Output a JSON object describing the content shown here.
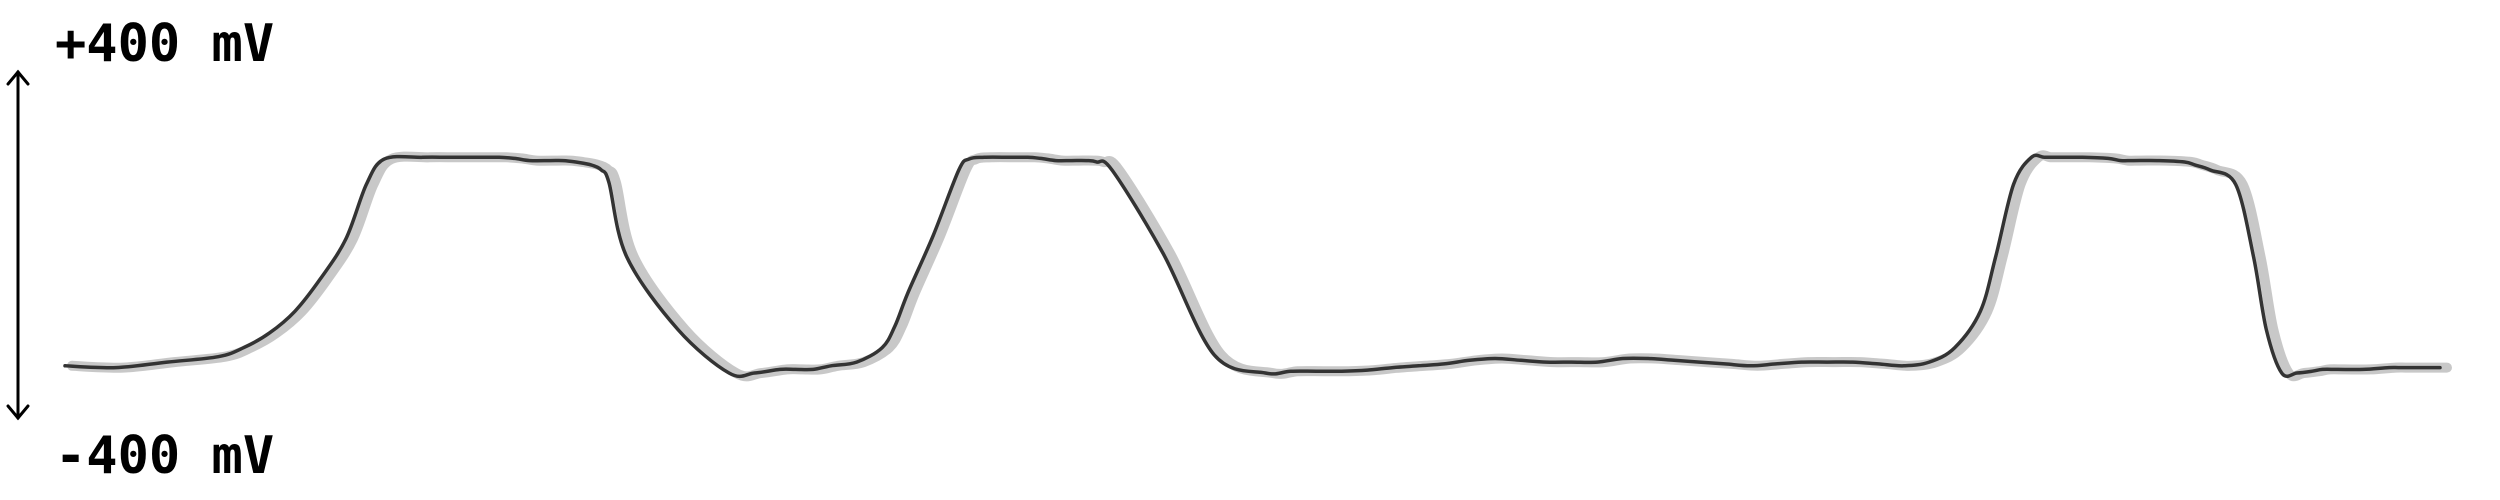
{
  "chart_data": {
    "type": "line",
    "title": "",
    "xlabel": "",
    "ylabel": "",
    "ylim": [
      -400,
      400
    ],
    "y_top_label": "+400 mV",
    "y_bottom_label": "-400 mV",
    "grid": false,
    "legend": "none",
    "colors": {
      "trace": "#333333",
      "trace_shadow": "#9a9a9a",
      "axis": "#000000"
    },
    "series": [
      {
        "x": [
          0,
          2,
          4,
          6,
          7,
          8,
          9,
          10,
          11,
          11.8,
          12.5,
          14,
          15,
          16,
          17,
          17.6,
          18.2,
          19,
          19.5,
          20,
          20.6,
          21,
          21.3,
          22,
          24,
          26,
          27,
          28,
          28.6,
          29.3,
          30,
          31,
          32,
          32.5,
          33,
          34,
          35,
          35.4,
          36,
          37,
          37.7,
          38.2,
          38.8,
          39.4,
          40,
          40.4,
          41,
          43,
          45,
          47,
          48,
          49,
          50,
          51,
          52,
          53,
          54,
          55,
          56,
          57,
          58,
          59,
          60,
          61,
          62,
          63,
          64,
          65,
          66,
          67,
          68,
          69,
          70,
          71,
          72,
          73,
          74,
          75,
          75.6,
          76.3,
          77,
          77.5,
          78,
          79,
          80,
          80.5,
          81,
          82,
          83,
          83.4,
          84,
          85,
          85.7,
          86.2,
          86.8,
          87.4,
          88,
          88.4,
          89,
          90,
          91,
          91.5,
          93
        ],
        "y": [
          -300,
          -305,
          -290,
          -275,
          -250,
          -210,
          -150,
          -60,
          50,
          200,
          270,
          275,
          275,
          275,
          275,
          272,
          266,
          266,
          266,
          262,
          254,
          240,
          205,
          0,
          -200,
          -320,
          -320,
          -310,
          -310,
          -310,
          -300,
          -290,
          -250,
          -190,
          -100,
          60,
          240,
          270,
          275,
          275,
          275,
          272,
          266,
          266,
          266,
          262,
          240,
          10,
          -270,
          -320,
          -315,
          -315,
          -315,
          -312,
          -305,
          -300,
          -295,
          -285,
          -280,
          -285,
          -290,
          -290,
          -290,
          -280,
          -280,
          -285,
          -290,
          -295,
          -300,
          -295,
          -290,
          -290,
          -290,
          -295,
          -300,
          -290,
          -250,
          -150,
          0,
          200,
          275,
          275,
          275,
          275,
          272,
          266,
          266,
          266,
          262,
          254,
          240,
          200,
          0,
          -200,
          -320,
          -320,
          -315,
          -310,
          -310,
          -310,
          -305,
          -305,
          -305
        ]
      }
    ]
  }
}
